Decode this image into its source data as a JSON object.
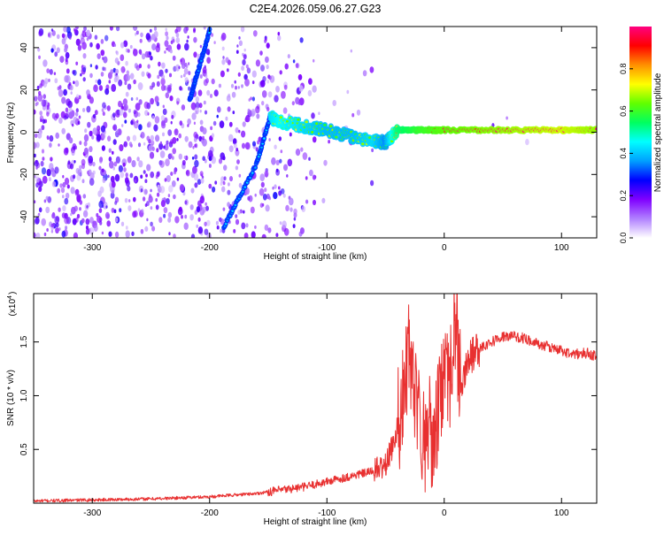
{
  "page_title": "C2E4.2026.059.06.27.G23",
  "chart_data": [
    {
      "type": "heatmap",
      "title": "C2E4.2026.059.06.27.G23",
      "xlabel": "Height of straight line (km)",
      "ylabel": "Frequency (Hz)",
      "xlim": [
        -350,
        130
      ],
      "ylim": [
        -50,
        50
      ],
      "x_ticks": [
        -300,
        -200,
        -100,
        0,
        100
      ],
      "y_ticks": [
        -40,
        -20,
        0,
        20,
        40
      ],
      "colorbar": {
        "label": "Normalized spectral amplitude",
        "range": [
          0,
          1
        ],
        "ticks": [
          0.0,
          0.2,
          0.4,
          0.6,
          0.8
        ],
        "colors": [
          "#ffffff",
          "#b080ff",
          "#8000ff",
          "#0000ff",
          "#00a0ff",
          "#00ffff",
          "#00ff60",
          "#60ff00",
          "#ffff00",
          "#ff9000",
          "#ff0000",
          "#ff0080"
        ]
      },
      "features": [
        {
          "name": "ascending track",
          "x": [
            -188,
            -160,
            -148
          ],
          "y": [
            -45,
            -15,
            8
          ],
          "amplitude": 0.35
        },
        {
          "name": "descending track",
          "x": [
            -217,
            -212,
            -200
          ],
          "y": [
            15,
            25,
            48
          ],
          "amplitude": 0.3
        },
        {
          "name": "main tone",
          "x": [
            -148,
            -140,
            -120,
            -100,
            -80,
            -60,
            -50,
            -40,
            -20,
            0,
            50,
            100,
            130
          ],
          "y": [
            7,
            5,
            3,
            1,
            -2,
            -4,
            -5,
            1,
            1,
            1,
            1,
            1,
            1
          ],
          "amplitude": [
            0.6,
            0.65,
            0.6,
            0.55,
            0.55,
            0.6,
            0.5,
            0.75,
            0.85,
            0.9,
            0.95,
            1.0,
            0.95
          ]
        }
      ]
    },
    {
      "type": "line",
      "xlabel": "Height of straight line (km)",
      "ylabel": "SNR (10 * v/v)",
      "y_scale_label": "(x10",
      "y_scale_exponent": "4",
      "xlim": [
        -350,
        130
      ],
      "ylim": [
        0,
        1.95
      ],
      "x_ticks": [
        -300,
        -200,
        -100,
        0,
        100
      ],
      "y_ticks": [
        0.5,
        1.0,
        1.5
      ],
      "series": [
        {
          "name": "SNR",
          "color": "#e83030",
          "x": [
            -350,
            -300,
            -250,
            -200,
            -160,
            -140,
            -120,
            -100,
            -80,
            -60,
            -50,
            -45,
            -40,
            -35,
            -30,
            -25,
            -20,
            -15,
            -10,
            -5,
            0,
            5,
            10,
            15,
            20,
            30,
            40,
            50,
            60,
            70,
            80,
            90,
            100,
            110,
            120,
            130
          ],
          "y": [
            0.02,
            0.03,
            0.04,
            0.06,
            0.09,
            0.12,
            0.15,
            0.2,
            0.25,
            0.3,
            0.35,
            0.5,
            0.7,
            1.0,
            1.35,
            0.9,
            0.7,
            0.6,
            0.7,
            0.85,
            1.0,
            1.2,
            1.7,
            1.05,
            1.35,
            1.45,
            1.5,
            1.55,
            1.55,
            1.53,
            1.48,
            1.45,
            1.42,
            1.38,
            1.4,
            1.37
          ]
        }
      ]
    }
  ]
}
